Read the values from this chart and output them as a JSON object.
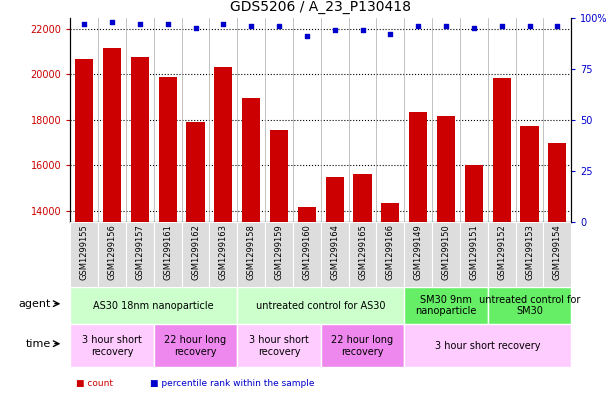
{
  "title": "GDS5206 / A_23_P130418",
  "samples": [
    "GSM1299155",
    "GSM1299156",
    "GSM1299157",
    "GSM1299161",
    "GSM1299162",
    "GSM1299163",
    "GSM1299158",
    "GSM1299159",
    "GSM1299160",
    "GSM1299164",
    "GSM1299165",
    "GSM1299166",
    "GSM1299149",
    "GSM1299150",
    "GSM1299151",
    "GSM1299152",
    "GSM1299153",
    "GSM1299154"
  ],
  "counts": [
    20700,
    21150,
    20750,
    19900,
    17900,
    20350,
    18950,
    17550,
    14150,
    15500,
    15600,
    14350,
    18350,
    18150,
    16000,
    19850,
    17750,
    17000
  ],
  "percentiles": [
    97,
    98,
    97,
    97,
    95,
    97,
    96,
    96,
    91,
    94,
    94,
    92,
    96,
    96,
    95,
    96,
    96,
    96
  ],
  "bar_color": "#cc0000",
  "dot_color": "#0000cc",
  "ylim_left": [
    13500,
    22500
  ],
  "yticks_left": [
    14000,
    16000,
    18000,
    20000,
    22000
  ],
  "ylim_right": [
    0,
    100
  ],
  "yticks_right": [
    0,
    25,
    50,
    75,
    100
  ],
  "yticklabels_right": [
    "0",
    "25",
    "50",
    "75",
    "100%"
  ],
  "grid_color": "#888888",
  "agent_groups": [
    {
      "label": "AS30 18nm nanoparticle",
      "start": 0,
      "end": 6,
      "color": "#ccffcc"
    },
    {
      "label": "untreated control for AS30",
      "start": 6,
      "end": 12,
      "color": "#ccffcc"
    },
    {
      "label": "SM30 9nm\nnanoparticle",
      "start": 12,
      "end": 15,
      "color": "#66ee66"
    },
    {
      "label": "untreated control for\nSM30",
      "start": 15,
      "end": 18,
      "color": "#66ee66"
    }
  ],
  "time_groups": [
    {
      "label": "3 hour short\nrecovery",
      "start": 0,
      "end": 3,
      "color": "#ffccff"
    },
    {
      "label": "22 hour long\nrecovery",
      "start": 3,
      "end": 6,
      "color": "#ee88ee"
    },
    {
      "label": "3 hour short\nrecovery",
      "start": 6,
      "end": 9,
      "color": "#ffccff"
    },
    {
      "label": "22 hour long\nrecovery",
      "start": 9,
      "end": 12,
      "color": "#ee88ee"
    },
    {
      "label": "3 hour short recovery",
      "start": 12,
      "end": 18,
      "color": "#ffccff"
    }
  ],
  "legend_items": [
    {
      "label": "count",
      "color": "#cc0000"
    },
    {
      "label": "percentile rank within the sample",
      "color": "#0000cc"
    }
  ],
  "title_fontsize": 10,
  "tick_fontsize": 7,
  "xlabel_fontsize": 6,
  "annotation_fontsize": 7,
  "label_fontsize": 8,
  "xlim": [
    -0.5,
    17.5
  ]
}
